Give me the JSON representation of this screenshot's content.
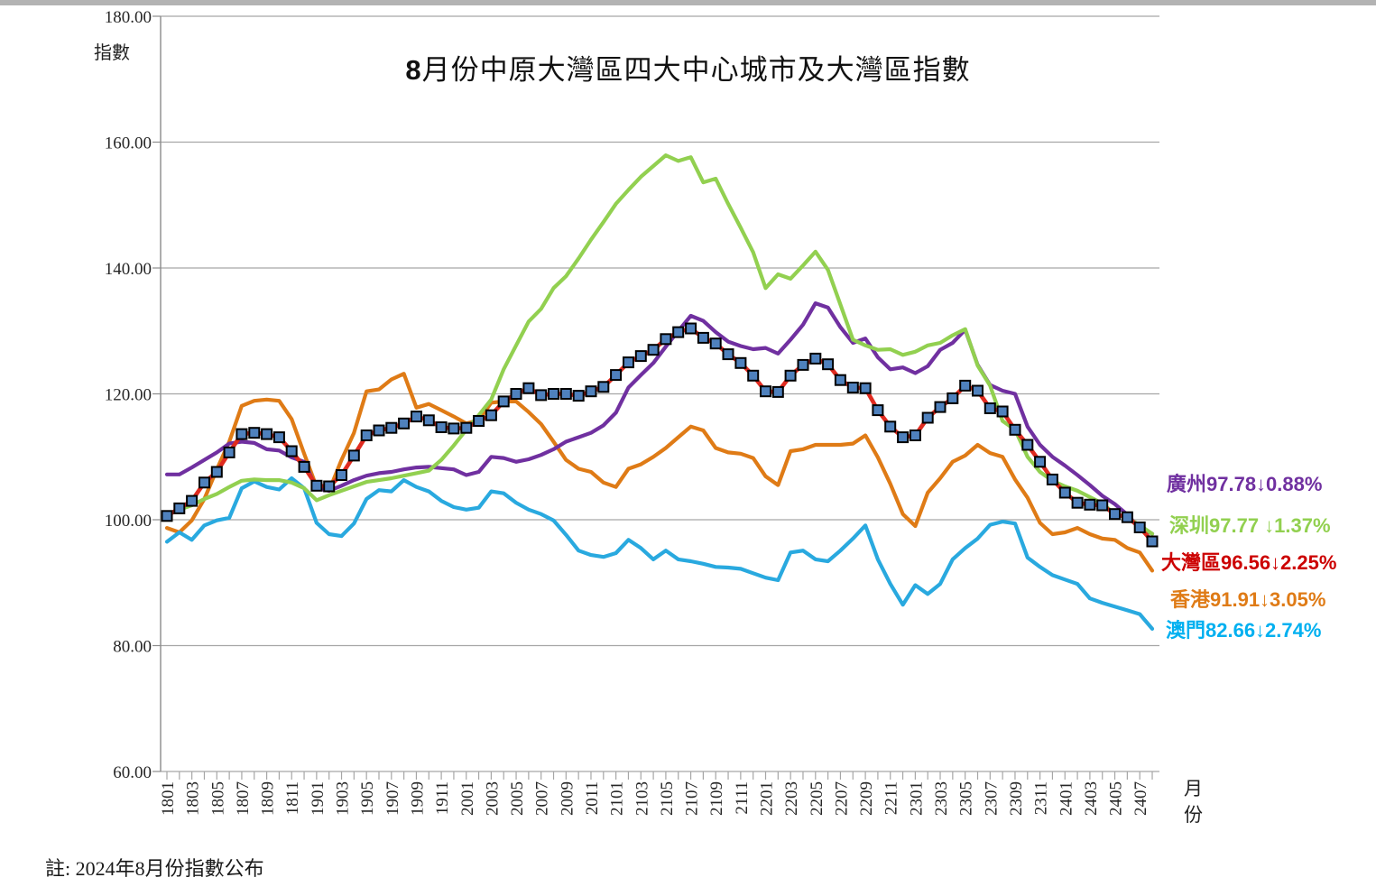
{
  "chart_data": {
    "type": "line",
    "title": "8月份中原大灣區四大中心城市及大灣區指數",
    "note": "註: 2024年8月份指數公布",
    "y_axis": {
      "label": "指數",
      "min": 60,
      "max": 180,
      "tick_values": [
        180,
        160,
        140,
        120,
        100,
        80,
        60
      ],
      "tick_labels": [
        "180.00",
        "160.00",
        "140.00",
        "120.00",
        "100.00",
        "80.00",
        "60.00"
      ],
      "grid": true
    },
    "x_axis": {
      "label": "月份",
      "tick_labels": [
        "1801",
        "1803",
        "1805",
        "1807",
        "1809",
        "1811",
        "1901",
        "1903",
        "1905",
        "1907",
        "1909",
        "1911",
        "2001",
        "2003",
        "2005",
        "2007",
        "2009",
        "2011",
        "2101",
        "2103",
        "2105",
        "2107",
        "2109",
        "2111",
        "2201",
        "2203",
        "2205",
        "2207",
        "2209",
        "2211",
        "2301",
        "2303",
        "2305",
        "2307",
        "2309",
        "2311",
        "2401",
        "2403",
        "2405",
        "2407"
      ]
    },
    "months": [
      "1801",
      "1802",
      "1803",
      "1804",
      "1805",
      "1806",
      "1807",
      "1808",
      "1809",
      "1810",
      "1811",
      "1812",
      "1901",
      "1902",
      "1903",
      "1904",
      "1905",
      "1906",
      "1907",
      "1908",
      "1909",
      "1910",
      "1911",
      "1912",
      "2001",
      "2002",
      "2003",
      "2004",
      "2005",
      "2006",
      "2007",
      "2008",
      "2009",
      "2010",
      "2011",
      "2012",
      "2101",
      "2102",
      "2103",
      "2104",
      "2105",
      "2106",
      "2107",
      "2108",
      "2109",
      "2110",
      "2111",
      "2112",
      "2201",
      "2202",
      "2203",
      "2204",
      "2205",
      "2206",
      "2207",
      "2208",
      "2209",
      "2210",
      "2211",
      "2212",
      "2301",
      "2302",
      "2303",
      "2304",
      "2305",
      "2306",
      "2307",
      "2308",
      "2309",
      "2310",
      "2311",
      "2312",
      "2401",
      "2402",
      "2403",
      "2404",
      "2405",
      "2406",
      "2407",
      "2408"
    ],
    "series": [
      {
        "id": "hongkong",
        "name": "香港",
        "color": "#df7b16",
        "latest": 91.91,
        "change": "↓3.05%",
        "values": [
          98.7,
          98.0,
          99.9,
          103.3,
          108.0,
          112.4,
          118.1,
          118.9,
          119.1,
          118.9,
          116.0,
          110.5,
          105.2,
          104.6,
          109.5,
          113.8,
          120.4,
          120.7,
          122.3,
          123.2,
          117.8,
          118.4,
          117.4,
          116.4,
          115.3,
          115.8,
          118.6,
          118.8,
          118.8,
          117.1,
          115.2,
          112.4,
          109.5,
          108.1,
          107.6,
          105.9,
          105.2,
          108.1,
          108.8,
          110.0,
          111.4,
          113.1,
          114.8,
          114.2,
          111.4,
          110.7,
          110.5,
          109.8,
          106.9,
          105.5,
          110.9,
          111.2,
          111.9,
          111.9,
          111.9,
          112.1,
          113.4,
          109.9,
          105.7,
          100.9,
          99.0,
          104.3,
          106.6,
          109.2,
          110.2,
          111.9,
          110.6,
          110.0,
          106.4,
          103.5,
          99.5,
          97.7,
          98.0,
          98.7,
          97.7,
          97.0,
          96.8,
          95.5,
          94.8,
          91.91
        ]
      },
      {
        "id": "macau",
        "name": "澳門",
        "color": "#29a9df",
        "latest": 82.66,
        "change": "↓2.74%",
        "values": [
          96.5,
          98.0,
          96.8,
          99.1,
          99.9,
          100.3,
          105.0,
          106.1,
          105.2,
          104.8,
          106.6,
          105.0,
          99.5,
          97.7,
          97.4,
          99.4,
          103.3,
          104.7,
          104.5,
          106.3,
          105.2,
          104.5,
          103.0,
          102.0,
          101.6,
          101.9,
          104.5,
          104.2,
          102.7,
          101.6,
          100.9,
          99.9,
          97.6,
          95.1,
          94.4,
          94.1,
          94.7,
          96.8,
          95.5,
          93.7,
          95.1,
          93.7,
          93.4,
          93.0,
          92.5,
          92.4,
          92.2,
          91.5,
          90.8,
          90.4,
          94.8,
          95.1,
          93.7,
          93.4,
          95.1,
          97.0,
          99.1,
          93.7,
          89.8,
          86.5,
          89.6,
          88.2,
          89.8,
          93.7,
          95.5,
          97.0,
          99.2,
          99.7,
          99.4,
          94.0,
          92.5,
          91.2,
          90.5,
          89.8,
          87.5,
          86.8,
          86.2,
          85.6,
          85.0,
          82.66
        ]
      },
      {
        "id": "guangzhou",
        "name": "廣州",
        "color": "#7030a0",
        "latest": 97.78,
        "change": "↓0.88%",
        "values": [
          107.2,
          107.2,
          108.3,
          109.5,
          110.7,
          112.1,
          112.4,
          112.2,
          111.2,
          111.0,
          109.9,
          109.2,
          105.0,
          104.6,
          105.4,
          106.3,
          107.0,
          107.4,
          107.6,
          108.0,
          108.3,
          108.4,
          108.2,
          108.0,
          107.1,
          107.6,
          110.0,
          109.8,
          109.2,
          109.6,
          110.3,
          111.2,
          112.4,
          113.1,
          113.8,
          115.0,
          117.0,
          121.0,
          123.0,
          124.9,
          127.5,
          130.0,
          132.4,
          131.6,
          129.8,
          128.3,
          127.6,
          127.1,
          127.3,
          126.4,
          128.6,
          131.0,
          134.4,
          133.7,
          130.6,
          128.1,
          128.8,
          125.8,
          123.9,
          124.2,
          123.3,
          124.4,
          127.0,
          128.1,
          130.2,
          124.6,
          121.4,
          120.5,
          120.0,
          114.8,
          111.9,
          110.0,
          108.6,
          107.1,
          105.5,
          103.8,
          102.5,
          100.8,
          98.65,
          97.78
        ]
      },
      {
        "id": "shenzhen",
        "name": "深圳",
        "color": "#92d050",
        "latest": 97.77,
        "change": "↓1.37%",
        "values": [
          100.9,
          101.6,
          102.3,
          103.3,
          104.1,
          105.2,
          106.2,
          106.4,
          106.3,
          106.3,
          105.9,
          105.0,
          103.1,
          103.9,
          104.6,
          105.3,
          106.0,
          106.3,
          106.6,
          107.0,
          107.4,
          107.8,
          109.5,
          111.8,
          114.3,
          116.6,
          119.1,
          123.9,
          127.7,
          131.5,
          133.5,
          136.8,
          138.7,
          141.5,
          144.5,
          147.3,
          150.2,
          152.4,
          154.5,
          156.2,
          157.9,
          157.0,
          157.6,
          153.6,
          154.2,
          150.2,
          146.4,
          142.5,
          136.8,
          139.0,
          138.3,
          140.4,
          142.6,
          139.7,
          134.2,
          128.6,
          127.7,
          127.0,
          127.1,
          126.2,
          126.7,
          127.7,
          128.1,
          129.3,
          130.3,
          124.5,
          121.3,
          115.7,
          114.3,
          110.0,
          107.6,
          106.2,
          105.3,
          104.6,
          103.6,
          102.6,
          100.9,
          100.3,
          99.13,
          97.77
        ]
      },
      {
        "id": "gba",
        "name": "大灣區",
        "color": "#e02b20",
        "marker": {
          "shape": "square",
          "fill": "#4f81bd",
          "stroke": "#000000"
        },
        "latest": 96.56,
        "change": "↓2.25%",
        "values": [
          100.6,
          101.8,
          103.0,
          105.9,
          107.6,
          110.7,
          113.6,
          113.8,
          113.6,
          113.1,
          110.9,
          108.4,
          105.4,
          105.3,
          107.1,
          110.2,
          113.4,
          114.2,
          114.6,
          115.3,
          116.4,
          115.8,
          114.7,
          114.5,
          114.6,
          115.7,
          116.6,
          118.8,
          120.0,
          120.9,
          119.8,
          120.0,
          120.0,
          119.7,
          120.4,
          121.1,
          123.0,
          125.0,
          126.0,
          127.0,
          128.7,
          129.8,
          130.4,
          128.9,
          128.0,
          126.3,
          124.9,
          122.9,
          120.4,
          120.3,
          122.9,
          124.6,
          125.6,
          124.7,
          122.2,
          121.0,
          120.9,
          117.4,
          114.8,
          113.1,
          113.4,
          116.2,
          117.9,
          119.3,
          121.3,
          120.5,
          117.7,
          117.2,
          114.3,
          111.9,
          109.2,
          106.4,
          104.3,
          102.7,
          102.4,
          102.3,
          100.9,
          100.4,
          98.78,
          96.56
        ]
      }
    ],
    "legend": [
      {
        "text": "廣州97.78↓0.88%",
        "color": "#7030a0"
      },
      {
        "text": "深圳97.77 ↓1.37%",
        "color": "#92d050"
      },
      {
        "text": "大灣區96.56↓2.25%",
        "color": "#cc0000"
      },
      {
        "text": "香港91.91↓3.05%",
        "color": "#df7b16"
      },
      {
        "text": "澳門82.66↓2.74%",
        "color": "#00b0f0"
      }
    ]
  }
}
